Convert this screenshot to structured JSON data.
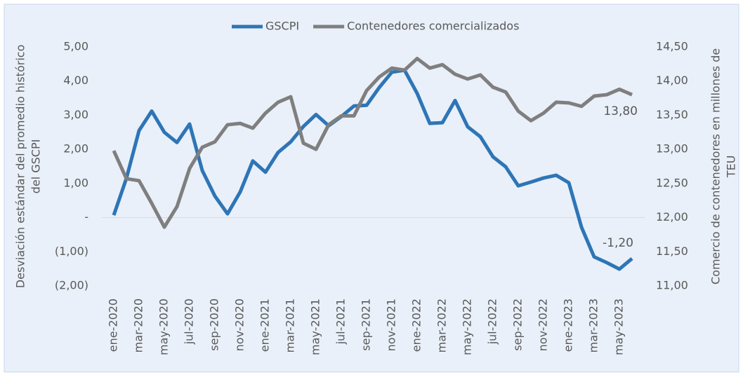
{
  "chart_data": {
    "type": "line",
    "categories": [
      "ene-2020",
      null,
      "mar-2020",
      null,
      "may-2020",
      null,
      "jul-2020",
      null,
      "sep-2020",
      null,
      "nov-2020",
      null,
      "ene-2021",
      null,
      "mar-2021",
      null,
      "may-2021",
      null,
      "jul-2021",
      null,
      "sep-2021",
      null,
      "nov-2021",
      null,
      "ene-2022",
      null,
      "mar-2022",
      null,
      "may-2022",
      null,
      "jul-2022",
      null,
      "sep-2022",
      null,
      "nov-2022",
      null,
      "ene-2023",
      null,
      "mar-2023",
      null,
      "may-2023",
      null
    ],
    "series": [
      {
        "name": "GSCPI",
        "color": "#2e75b6",
        "axis": "y",
        "values": [
          0.07,
          1.15,
          2.55,
          3.12,
          2.5,
          2.2,
          2.74,
          1.38,
          0.63,
          0.11,
          0.75,
          1.66,
          1.33,
          1.91,
          2.22,
          2.67,
          3.02,
          2.69,
          2.96,
          3.27,
          3.29,
          3.81,
          4.26,
          4.32,
          3.64,
          2.76,
          2.78,
          3.43,
          2.66,
          2.37,
          1.78,
          1.49,
          0.93,
          1.04,
          1.16,
          1.24,
          1.02,
          -0.28,
          -1.15,
          -1.32,
          -1.51,
          -1.2
        ],
        "value_labels": [
          null,
          null,
          null,
          null,
          null,
          null,
          null,
          null,
          null,
          null,
          null,
          null,
          null,
          null,
          null,
          null,
          null,
          null,
          null,
          null,
          null,
          null,
          null,
          null,
          null,
          null,
          null,
          null,
          null,
          null,
          null,
          null,
          null,
          null,
          null,
          null,
          null,
          null,
          null,
          null,
          null,
          "-1,20"
        ]
      },
      {
        "name": "Contenedores comercializados",
        "color": "#7f7f7f",
        "axis": "y2",
        "values": [
          12.98,
          12.57,
          12.54,
          12.21,
          11.86,
          12.16,
          12.72,
          13.03,
          13.11,
          13.36,
          13.38,
          13.31,
          13.53,
          13.69,
          13.77,
          13.09,
          13.0,
          13.36,
          13.49,
          13.49,
          13.86,
          14.06,
          14.19,
          14.16,
          14.33,
          14.19,
          14.24,
          14.1,
          14.03,
          14.09,
          13.91,
          13.84,
          13.56,
          13.42,
          13.53,
          13.69,
          13.68,
          13.63,
          13.78,
          13.8,
          13.88,
          13.8
        ],
        "value_labels": [
          null,
          null,
          null,
          null,
          null,
          null,
          null,
          null,
          null,
          null,
          null,
          null,
          null,
          null,
          null,
          null,
          null,
          null,
          null,
          null,
          null,
          null,
          null,
          null,
          null,
          null,
          null,
          null,
          null,
          null,
          null,
          null,
          null,
          null,
          null,
          null,
          null,
          null,
          null,
          null,
          null,
          "13,80"
        ]
      }
    ],
    "ylabel": [
      "Desviación estándar del promedio histórico",
      "del GSCPI"
    ],
    "y2label": [
      "Comercio de contenedores en millones de",
      "TEU"
    ],
    "ylim": [
      -2,
      5
    ],
    "yticks": [
      {
        "value": 5,
        "label": "5,00"
      },
      {
        "value": 4,
        "label": "4,00"
      },
      {
        "value": 3,
        "label": "3,00"
      },
      {
        "value": 2,
        "label": "2,00"
      },
      {
        "value": 1,
        "label": "1,00"
      },
      {
        "value": 0,
        "label": "-"
      },
      {
        "value": -1,
        "label": "(1,00)"
      },
      {
        "value": -2,
        "label": "(2,00)"
      }
    ],
    "y2lim": [
      11,
      14.5
    ],
    "y2ticks": [
      {
        "value": 14.5,
        "label": "14,50"
      },
      {
        "value": 14,
        "label": "14,00"
      },
      {
        "value": 13.5,
        "label": "13,50"
      },
      {
        "value": 13,
        "label": "13,00"
      },
      {
        "value": 12.5,
        "label": "12,50"
      },
      {
        "value": 12,
        "label": "12,00"
      },
      {
        "value": 11.5,
        "label": "11,50"
      },
      {
        "value": 11,
        "label": "11,00"
      }
    ],
    "legend": "top"
  }
}
